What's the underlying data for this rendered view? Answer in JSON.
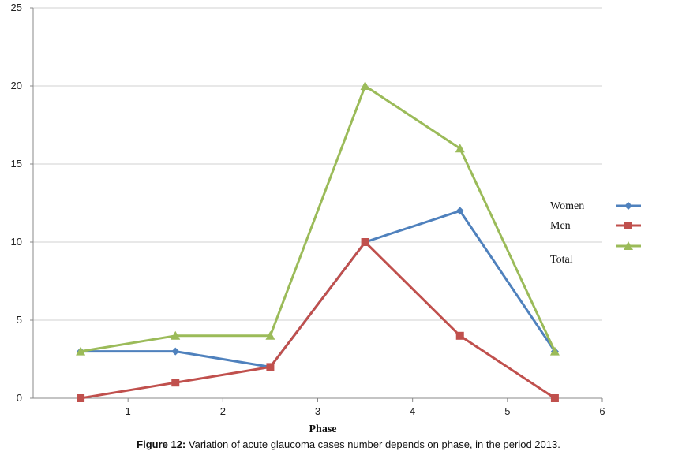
{
  "chart_data": {
    "type": "line",
    "xlabel": "Phase",
    "ylabel": "",
    "xlim": [
      0,
      6
    ],
    "ylim": [
      0,
      25
    ],
    "x_ticks": [
      "1",
      "2",
      "3",
      "4",
      "5",
      "6"
    ],
    "y_ticks": [
      "0",
      "5",
      "10",
      "15",
      "20",
      "25"
    ],
    "grid": "horizontal",
    "legend_position": "right",
    "x": [
      0.5,
      1.5,
      2.5,
      3.5,
      4.5,
      5.5
    ],
    "series": [
      {
        "name": "Women",
        "values": [
          3,
          3,
          2,
          10,
          12,
          3
        ],
        "color": "#4F81BD",
        "marker": "diamond"
      },
      {
        "name": "Men",
        "values": [
          0,
          1,
          2,
          10,
          4,
          0
        ],
        "color": "#C0504D",
        "marker": "square"
      },
      {
        "name": "Total",
        "values": [
          3,
          4,
          4,
          20,
          16,
          3
        ],
        "color": "#9BBB59",
        "marker": "triangle"
      }
    ]
  },
  "caption": {
    "label": "Figure 12:",
    "text": " Variation of acute glaucoma cases number depends on phase, in the period 2013."
  }
}
